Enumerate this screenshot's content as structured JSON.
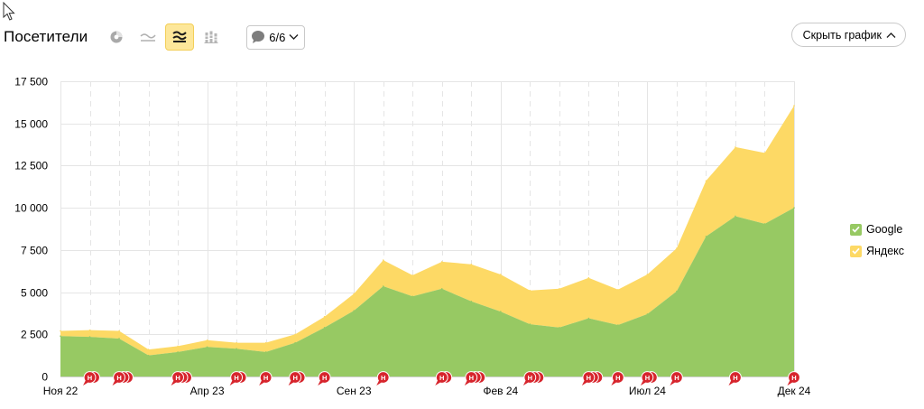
{
  "header": {
    "title": "Посетители",
    "notes_filter": "6/6",
    "hide_chart_label": "Скрыть график"
  },
  "colors": {
    "google": "#97c963",
    "yandex": "#fdd965",
    "note_marker": "#d7252d",
    "grid": "#e5e5e5",
    "active_tool": "#fde79a"
  },
  "chart_data": {
    "type": "area",
    "stacked": true,
    "title": "Посетители",
    "xlabel": "",
    "ylabel": "",
    "ylim": [
      0,
      17500
    ],
    "yticks": [
      0,
      2500,
      5000,
      7500,
      10000,
      12500,
      15000,
      17500
    ],
    "ytick_labels": [
      "0",
      "2 500",
      "5 000",
      "7 500",
      "10 000",
      "12 500",
      "15 000",
      "17 500"
    ],
    "x": [
      "2022-11",
      "2022-12",
      "2023-01",
      "2023-02",
      "2023-03",
      "2023-04",
      "2023-05",
      "2023-06",
      "2023-07",
      "2023-08",
      "2023-09",
      "2023-10",
      "2023-11",
      "2023-12",
      "2024-01",
      "2024-02",
      "2024-03",
      "2024-04",
      "2024-05",
      "2024-06",
      "2024-07",
      "2024-08",
      "2024-09",
      "2024-10",
      "2024-11",
      "2024-12"
    ],
    "xtick_labels": [
      {
        "index": 0,
        "label": "Ноя 22"
      },
      {
        "index": 5,
        "label": "Апр 23"
      },
      {
        "index": 10,
        "label": "Сен 23"
      },
      {
        "index": 15,
        "label": "Фев 24"
      },
      {
        "index": 20,
        "label": "Июл 24"
      },
      {
        "index": 25,
        "label": "Дек 24"
      }
    ],
    "series": [
      {
        "name": "Google",
        "values": [
          2400,
          2350,
          2250,
          1250,
          1450,
          1750,
          1650,
          1450,
          2000,
          2900,
          3900,
          5350,
          4750,
          5200,
          4450,
          3850,
          3100,
          2900,
          3450,
          3050,
          3700,
          5050,
          8300,
          9500,
          9050,
          10000
        ]
      },
      {
        "name": "Яндекс",
        "values": [
          300,
          400,
          450,
          350,
          350,
          400,
          350,
          550,
          500,
          650,
          1000,
          1550,
          1250,
          1600,
          2200,
          2200,
          2000,
          2300,
          2400,
          2100,
          2350,
          2550,
          3300,
          4100,
          4200,
          6050
        ]
      }
    ],
    "note_marker_label": "H",
    "note_markers": [
      {
        "index": 1.0,
        "count": 2
      },
      {
        "index": 2.0,
        "count": 3
      },
      {
        "index": 4.0,
        "count": 3
      },
      {
        "index": 6.0,
        "count": 2
      },
      {
        "index": 7.0,
        "count": 1
      },
      {
        "index": 8.0,
        "count": 2
      },
      {
        "index": 9.0,
        "count": 1
      },
      {
        "index": 11.0,
        "count": 1
      },
      {
        "index": 13.0,
        "count": 2
      },
      {
        "index": 14.0,
        "count": 3
      },
      {
        "index": 16.0,
        "count": 3
      },
      {
        "index": 18.0,
        "count": 3
      },
      {
        "index": 19.0,
        "count": 1
      },
      {
        "index": 20.0,
        "count": 2
      },
      {
        "index": 21.0,
        "count": 1
      },
      {
        "index": 23.0,
        "count": 1
      },
      {
        "index": 25.0,
        "count": 1
      }
    ],
    "legend_position": "right"
  }
}
